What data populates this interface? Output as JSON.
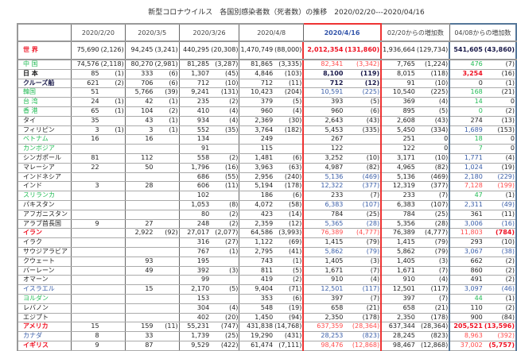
{
  "title": "新型コロナウイルス　各国別感染者数（死者数）の推移　2020/02/20---2020/04/16",
  "headers": [
    "2020/2/20",
    "2020/3/5",
    "2020/3/26",
    "2020/4/8",
    "2020/4/16",
    "02/20からの増加数",
    "04/08からの増加数"
  ],
  "colors": {
    "red": "#ee1122",
    "green": "#22bb55",
    "blue": "#3a5ea8",
    "highlight_border_4_16": "#ee3333",
    "highlight_border_04_08": "#557799"
  },
  "rows": [
    {
      "name": "世 界",
      "nc": "rb",
      "v": [
        "75,690",
        "(2,126)",
        "94,245",
        "(3,241)",
        "440,295",
        "(20,308)",
        "1,470,749",
        "(88,000)",
        "2,012,354",
        "(131,860)",
        "1,936,664",
        "(129,734)",
        "541,605",
        "(43,860)"
      ],
      "s5": "rb",
      "s5p": "rb",
      "s7": "nb",
      "s7p": "nb"
    },
    {
      "name": "中 国",
      "nc": "g",
      "v": [
        "74,576",
        "(2,118)",
        "80,270",
        "(2,981)",
        "81,285",
        "(3,287)",
        "81,865",
        "(3,335)",
        "82,341",
        "(3,342)",
        "7,765",
        "(1,224)",
        "476",
        "(7)"
      ],
      "s5": "r",
      "s5p": "r",
      "s7": "g",
      "s7p": "k"
    },
    {
      "name": "日 本",
      "nc": "kb",
      "v": [
        "85",
        "(1)",
        "333",
        "(6)",
        "1,307",
        "(45)",
        "4,846",
        "(103)",
        "8,100",
        "(119)",
        "8,015",
        "(118)",
        "3,254",
        "(16)"
      ],
      "s5": "nb",
      "s5p": "nb",
      "s7": "rb",
      "s7p": "k"
    },
    {
      "name": "クルーズ船",
      "nc": "nb",
      "v": [
        "621",
        "(2)",
        "706",
        "(6)",
        "712",
        "(10)",
        "712",
        "(11)",
        "712",
        "(12)",
        "91",
        "(10)",
        "0",
        "(1)"
      ],
      "s5": "nb",
      "s5p": "nb",
      "s7": "k",
      "s7p": "k"
    },
    {
      "name": "韓国",
      "nc": "g",
      "v": [
        "51",
        "",
        "5,766",
        "(39)",
        "9,241",
        "(131)",
        "10,423",
        "(204)",
        "10,591",
        "(225)",
        "10,540",
        "(225)",
        "168",
        "(21)"
      ],
      "s5": "b",
      "s5p": "b",
      "s7": "g",
      "s7p": "k"
    },
    {
      "name": "台 湾",
      "nc": "g",
      "v": [
        "24",
        "(1)",
        "42",
        "(1)",
        "235",
        "(2)",
        "379",
        "(5)",
        "393",
        "(5)",
        "369",
        "(4)",
        "14",
        "0"
      ],
      "s5": "k",
      "s5p": "k",
      "s7": "g",
      "s7p": "k"
    },
    {
      "name": "香 港",
      "nc": "g",
      "v": [
        "65",
        "(1)",
        "104",
        "(2)",
        "410",
        "(4)",
        "960",
        "(4)",
        "960",
        "(6)",
        "895",
        "(5)",
        "0",
        "(2)"
      ],
      "s5": "k",
      "s5p": "k",
      "s7": "g",
      "s7p": "k"
    },
    {
      "name": "タイ",
      "nc": "k",
      "v": [
        "35",
        "",
        "43",
        "(1)",
        "934",
        "(4)",
        "2,369",
        "(30)",
        "2,643",
        "(43)",
        "2,608",
        "(43)",
        "274",
        "(13)"
      ],
      "s5": "k",
      "s5p": "k",
      "s7": "k",
      "s7p": "k"
    },
    {
      "name": "フィリピン",
      "nc": "k",
      "v": [
        "3",
        "(1)",
        "3",
        "(1)",
        "552",
        "(35)",
        "3,764",
        "(182)",
        "5,453",
        "(335)",
        "5,450",
        "(334)",
        "1,689",
        "(153)"
      ],
      "s5": "k",
      "s5p": "k",
      "s7": "b",
      "s7p": "k"
    },
    {
      "name": "ベトナム",
      "nc": "g",
      "v": [
        "16",
        "",
        "16",
        "",
        "134",
        "",
        "249",
        "",
        "267",
        "",
        "251",
        "0",
        "18",
        "0"
      ],
      "s5": "k",
      "s5p": "k",
      "s7": "g",
      "s7p": "k"
    },
    {
      "name": "カンボジア",
      "nc": "g",
      "v": [
        "",
        "",
        "",
        "",
        "91",
        "",
        "115",
        "",
        "122",
        "",
        "122",
        "0",
        "7",
        "0"
      ],
      "s5": "k",
      "s5p": "k",
      "s7": "g",
      "s7p": "k"
    },
    {
      "name": "シンガポール",
      "nc": "k",
      "v": [
        "81",
        "",
        "112",
        "",
        "558",
        "(2)",
        "1,481",
        "(6)",
        "3,252",
        "(10)",
        "3,171",
        "(10)",
        "1,771",
        "(4)"
      ],
      "s5": "k",
      "s5p": "k",
      "s7": "b",
      "s7p": "k"
    },
    {
      "name": "マレーシア",
      "nc": "k",
      "v": [
        "22",
        "",
        "50",
        "",
        "1,796",
        "(16)",
        "3,963",
        "(63)",
        "4,987",
        "(82)",
        "4,965",
        "(82)",
        "1,024",
        "(19)"
      ],
      "s5": "k",
      "s5p": "k",
      "s7": "b",
      "s7p": "k"
    },
    {
      "name": "インドネシア",
      "nc": "k",
      "v": [
        "",
        "",
        "",
        "",
        "686",
        "(55)",
        "2,956",
        "(240)",
        "5,136",
        "(469)",
        "5,136",
        "(469)",
        "2,180",
        "(229)"
      ],
      "s5": "b",
      "s5p": "b",
      "s7": "b",
      "s7p": "b"
    },
    {
      "name": "インド",
      "nc": "k",
      "v": [
        "3",
        "",
        "28",
        "",
        "606",
        "(11)",
        "5,194",
        "(178)",
        "12,322",
        "(377)",
        "12,319",
        "(377)",
        "7,128",
        "(199)"
      ],
      "s5": "b",
      "s5p": "b",
      "s7": "r",
      "s7p": "r"
    },
    {
      "name": "スリランカ",
      "nc": "g",
      "v": [
        "",
        "",
        "",
        "",
        "102",
        "",
        "186",
        "(6)",
        "233",
        "(7)",
        "233",
        "(7)",
        "47",
        "(1)"
      ],
      "s5": "k",
      "s5p": "k",
      "s7": "g",
      "s7p": "k"
    },
    {
      "name": "パキスタン",
      "nc": "k",
      "v": [
        "",
        "",
        "",
        "",
        "1,053",
        "(8)",
        "4,072",
        "(58)",
        "6,383",
        "(107)",
        "6,383",
        "(107)",
        "2,311",
        "(49)"
      ],
      "s5": "b",
      "s5p": "b",
      "s7": "b",
      "s7p": "b"
    },
    {
      "name": "アフガニスタン",
      "nc": "k",
      "v": [
        "",
        "",
        "",
        "",
        "80",
        "(2)",
        "423",
        "(14)",
        "784",
        "(25)",
        "784",
        "(25)",
        "361",
        "(11)"
      ],
      "s5": "k",
      "s5p": "k",
      "s7": "k",
      "s7p": "k"
    },
    {
      "name": "アラブ首長国",
      "nc": "k",
      "v": [
        "9",
        "",
        "27",
        "",
        "248",
        "(2)",
        "2,359",
        "(12)",
        "5,365",
        "(28)",
        "5,356",
        "(28)",
        "3,006",
        "(16)"
      ],
      "s5": "b",
      "s5p": "b",
      "s7": "b",
      "s7p": "b"
    },
    {
      "name": "イラン",
      "nc": "rb",
      "v": [
        "",
        "",
        "2,922",
        "(92)",
        "27,017",
        "(2,077)",
        "64,586",
        "(3,993)",
        "76,389",
        "(4,777)",
        "76,389",
        "(4,777)",
        "11,803",
        "(784)"
      ],
      "s5": "r",
      "s5p": "r",
      "s7": "r",
      "s7p": "rb"
    },
    {
      "name": "イラク",
      "nc": "k",
      "v": [
        "",
        "",
        "",
        "",
        "316",
        "(27)",
        "1,122",
        "(69)",
        "1,415",
        "(79)",
        "1,415",
        "(79)",
        "293",
        "(10)"
      ],
      "s5": "k",
      "s5p": "k",
      "s7": "k",
      "s7p": "k"
    },
    {
      "name": "サウジアラビア",
      "nc": "k",
      "v": [
        "",
        "",
        "",
        "",
        "767",
        "(1)",
        "2,795",
        "(41)",
        "5,862",
        "(79)",
        "5,862",
        "(79)",
        "3,067",
        "(38)"
      ],
      "s5": "b",
      "s5p": "b",
      "s7": "b",
      "s7p": "b"
    },
    {
      "name": "クウェート",
      "nc": "k",
      "v": [
        "",
        "",
        "93",
        "",
        "195",
        "",
        "743",
        "(1)",
        "1,405",
        "(3)",
        "1,405",
        "(3)",
        "662",
        "(2)"
      ],
      "s5": "k",
      "s5p": "k",
      "s7": "k",
      "s7p": "k"
    },
    {
      "name": "バーレーン",
      "nc": "k",
      "v": [
        "",
        "",
        "49",
        "",
        "392",
        "(3)",
        "811",
        "(5)",
        "1,671",
        "(7)",
        "1,671",
        "(7)",
        "860",
        "(2)"
      ],
      "s5": "k",
      "s5p": "k",
      "s7": "k",
      "s7p": "k"
    },
    {
      "name": "オマーン",
      "nc": "k",
      "v": [
        "",
        "",
        "",
        "",
        "99",
        "",
        "419",
        "(2)",
        "910",
        "(4)",
        "910",
        "(4)",
        "491",
        "(2)"
      ],
      "s5": "k",
      "s5p": "k",
      "s7": "k",
      "s7p": "k"
    },
    {
      "name": "イスラエル",
      "nc": "b",
      "v": [
        "",
        "",
        "15",
        "",
        "2,170",
        "(5)",
        "9,404",
        "(71)",
        "12,501",
        "(117)",
        "12,501",
        "(117)",
        "3,097",
        "(46)"
      ],
      "s5": "b",
      "s5p": "b",
      "s7": "b",
      "s7p": "b"
    },
    {
      "name": "ヨルダン",
      "nc": "g",
      "v": [
        "",
        "",
        "",
        "",
        "153",
        "",
        "353",
        "(6)",
        "397",
        "(7)",
        "397",
        "(7)",
        "44",
        "(1)"
      ],
      "s5": "k",
      "s5p": "k",
      "s7": "g",
      "s7p": "k"
    },
    {
      "name": "レバノン",
      "nc": "k",
      "v": [
        "",
        "",
        "",
        "",
        "304",
        "(4)",
        "548",
        "(19)",
        "658",
        "(21)",
        "658",
        "(21)",
        "110",
        "(2)"
      ],
      "s5": "k",
      "s5p": "k",
      "s7": "k",
      "s7p": "k"
    },
    {
      "name": "エジプト",
      "nc": "k",
      "v": [
        "",
        "",
        "",
        "",
        "402",
        "(20)",
        "1,450",
        "(94)",
        "2,350",
        "(178)",
        "2,350",
        "(178)",
        "900",
        "(84)"
      ],
      "s5": "k",
      "s5p": "k",
      "s7": "k",
      "s7p": "k"
    },
    {
      "name": "アメリカ",
      "nc": "rb",
      "v": [
        "15",
        "",
        "159",
        "(11)",
        "55,231",
        "(747)",
        "431,838",
        "(14,768)",
        "637,359",
        "(28,364)",
        "637,344",
        "(28,364)",
        "205,521",
        "(13,596)"
      ],
      "s5": "r",
      "s5p": "r",
      "s7": "rb",
      "s7p": "rb"
    },
    {
      "name": "カナダ",
      "nc": "b",
      "v": [
        "8",
        "",
        "33",
        "",
        "1,739",
        "(25)",
        "19,290",
        "(431)",
        "28,253",
        "(823)",
        "28,245",
        "(823)",
        "8,963",
        "(392)"
      ],
      "s5": "b",
      "s5p": "b",
      "s7": "r",
      "s7p": "r"
    },
    {
      "name": "イギリス",
      "nc": "rb",
      "v": [
        "9",
        "",
        "87",
        "",
        "9,529",
        "(422)",
        "61,474",
        "(7,111)",
        "98,476",
        "(12,868)",
        "98,467",
        "(12,868)",
        "37,002",
        "(5,757)"
      ],
      "s5": "r",
      "s5p": "r",
      "s7": "r",
      "s7p": "rb"
    }
  ]
}
